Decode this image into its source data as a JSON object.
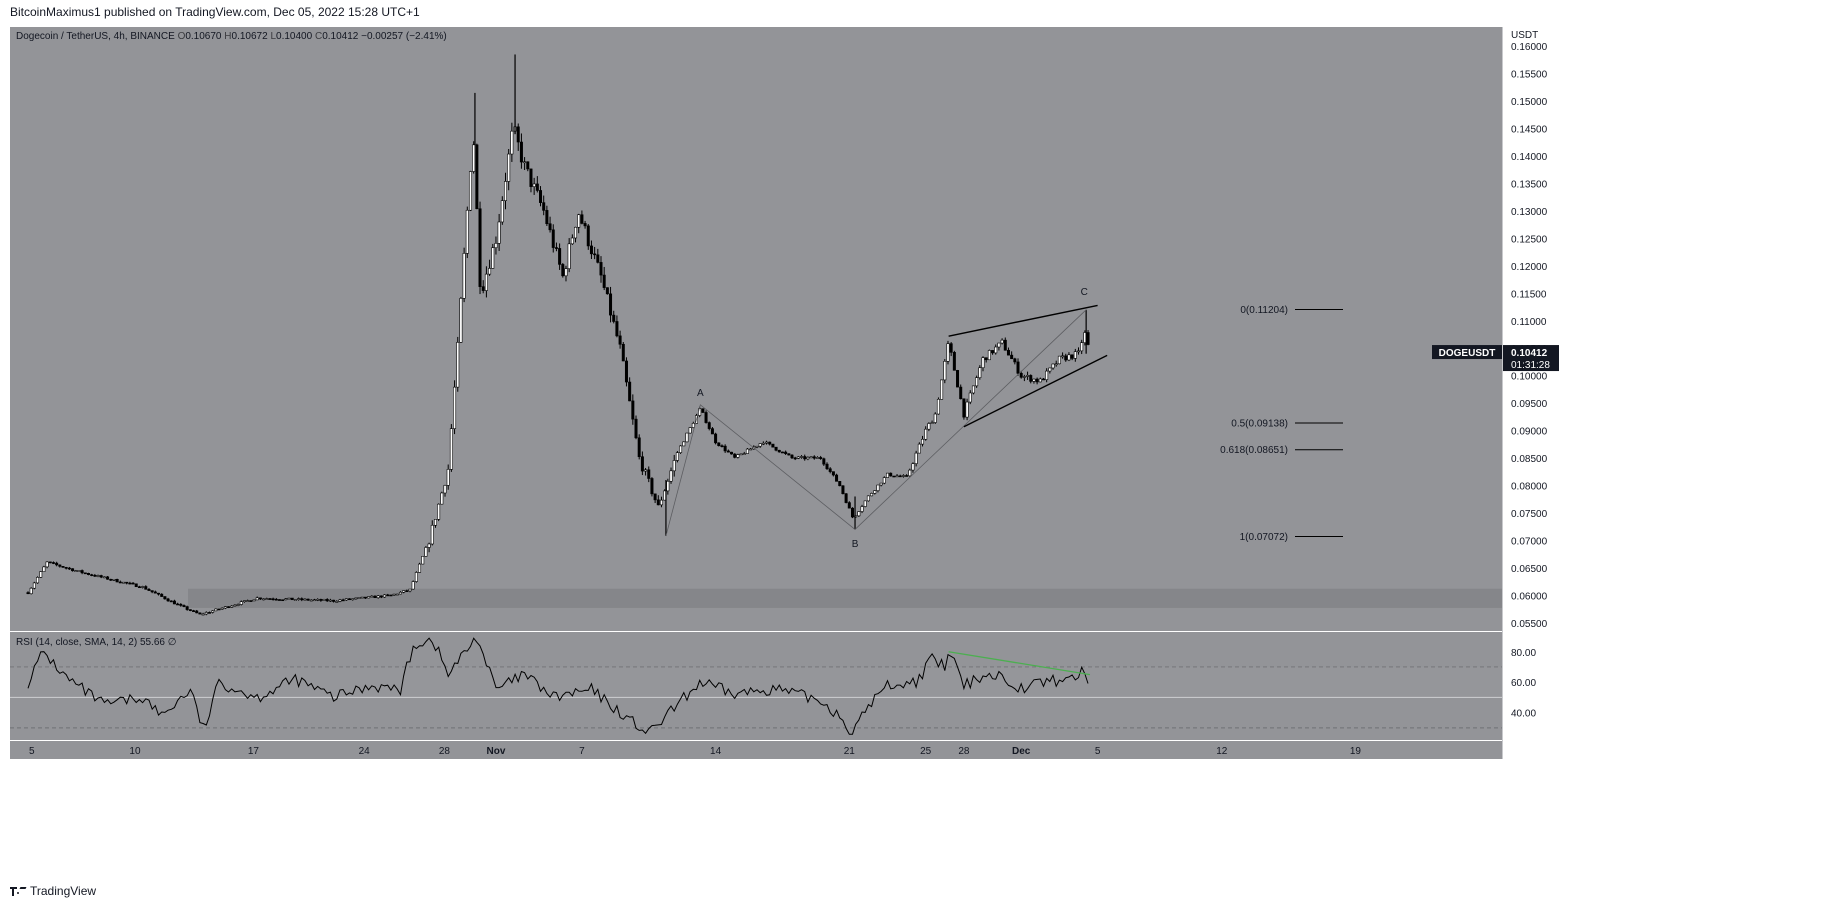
{
  "header": {
    "published": "BitcoinMaximus1 published on TradingView.com, Dec 05, 2022 15:28 UTC+1"
  },
  "footer": {
    "brand": "TradingView",
    "logo_icon": "tradingview-logo-icon"
  },
  "chart_data": [
    {
      "type": "candlestick",
      "symbol_title": "Dogecoin / TetherUS, 4h, BINANCE",
      "ohlc": {
        "O": "0.10670",
        "H": "0.10672",
        "L": "0.10400",
        "C": "0.10412",
        "change": "−0.00257 (−2.41%)"
      },
      "axis_unit": "USDT",
      "ylim": [
        0.0535,
        0.1635
      ],
      "y_ticks": [
        "0.16000",
        "0.15500",
        "0.15000",
        "0.14500",
        "0.14000",
        "0.13500",
        "0.13000",
        "0.12500",
        "0.12000",
        "0.11500",
        "0.11000",
        "0.10500",
        "0.10000",
        "0.09500",
        "0.09000",
        "0.08500",
        "0.08000",
        "0.07500",
        "0.07000",
        "0.06500",
        "0.06000",
        "0.05500"
      ],
      "x_ticks": [
        "5",
        "10",
        "17",
        "24",
        "28",
        "Nov",
        "7",
        "14",
        "21",
        "25",
        "28",
        "Dec",
        "5",
        "12",
        "19"
      ],
      "price_label": {
        "symbol": "DOGEUSDT",
        "price": "0.10412",
        "countdown": "01:31:28",
        "value": 0.10412
      },
      "support_zone": [
        0.0577,
        0.0612
      ],
      "waypoints": [
        {
          "day": 0,
          "price": 0.0605
        },
        {
          "day": 1,
          "price": 0.066
        },
        {
          "day": 3,
          "price": 0.064
        },
        {
          "day": 6,
          "price": 0.0615
        },
        {
          "day": 8,
          "price": 0.058
        },
        {
          "day": 9,
          "price": 0.0565
        },
        {
          "day": 12,
          "price": 0.0595
        },
        {
          "day": 16,
          "price": 0.059
        },
        {
          "day": 19,
          "price": 0.06
        },
        {
          "day": 20,
          "price": 0.061
        },
        {
          "day": 21,
          "price": 0.07
        },
        {
          "day": 22,
          "price": 0.083
        },
        {
          "day": 22.5,
          "price": 0.105
        },
        {
          "day": 23.3,
          "price": 0.145
        },
        {
          "day": 23.7,
          "price": 0.115
        },
        {
          "day": 24.5,
          "price": 0.125
        },
        {
          "day": 25.4,
          "price": 0.145
        },
        {
          "day": 26,
          "price": 0.138
        },
        {
          "day": 27,
          "price": 0.13
        },
        {
          "day": 28,
          "price": 0.118
        },
        {
          "day": 28.8,
          "price": 0.13
        },
        {
          "day": 30,
          "price": 0.118
        },
        {
          "day": 31,
          "price": 0.105
        },
        {
          "day": 32,
          "price": 0.085
        },
        {
          "day": 33,
          "price": 0.076
        },
        {
          "day": 34,
          "price": 0.086
        },
        {
          "day": 35.2,
          "price": 0.094
        },
        {
          "day": 36,
          "price": 0.088
        },
        {
          "day": 37,
          "price": 0.085
        },
        {
          "day": 38.5,
          "price": 0.088
        },
        {
          "day": 40,
          "price": 0.085
        },
        {
          "day": 41.5,
          "price": 0.085
        },
        {
          "day": 42.5,
          "price": 0.08
        },
        {
          "day": 43.2,
          "price": 0.074
        },
        {
          "day": 44,
          "price": 0.078
        },
        {
          "day": 45,
          "price": 0.082
        },
        {
          "day": 46,
          "price": 0.0815
        },
        {
          "day": 47,
          "price": 0.09
        },
        {
          "day": 47.5,
          "price": 0.093
        },
        {
          "day": 48.2,
          "price": 0.106
        },
        {
          "day": 49,
          "price": 0.093
        },
        {
          "day": 50,
          "price": 0.103
        },
        {
          "day": 51,
          "price": 0.106
        },
        {
          "day": 52,
          "price": 0.1
        },
        {
          "day": 53,
          "price": 0.099
        },
        {
          "day": 54,
          "price": 0.103
        },
        {
          "day": 55,
          "price": 0.104
        },
        {
          "day": 55.3,
          "price": 0.108
        },
        {
          "day": 55.6,
          "price": 0.10412
        }
      ],
      "candle_spikes": [
        {
          "day": 23.4,
          "high": 0.1515,
          "low": 0.142
        },
        {
          "day": 25.5,
          "high": 0.1585,
          "low": 0.144
        },
        {
          "day": 33.4,
          "high": 0.081,
          "low": 0.0708
        },
        {
          "day": 43.3,
          "high": 0.078,
          "low": 0.072
        },
        {
          "day": 55.4,
          "high": 0.112,
          "low": 0.104
        }
      ],
      "wave_labels": [
        {
          "text": "A",
          "day": 35.2,
          "price": 0.0963
        },
        {
          "text": "B",
          "day": 43.3,
          "price": 0.0688
        },
        {
          "text": "C",
          "day": 55.3,
          "price": 0.1147
        }
      ],
      "wave_path": [
        {
          "day": 33.4,
          "price": 0.0708
        },
        {
          "day": 35.2,
          "price": 0.0947
        },
        {
          "day": 43.3,
          "price": 0.072
        },
        {
          "day": 55.4,
          "price": 0.112
        }
      ],
      "wedge_lines": [
        [
          {
            "day": 48.2,
            "price": 0.1072
          },
          {
            "day": 56,
            "price": 0.1128
          }
        ],
        [
          {
            "day": 49,
            "price": 0.0907
          },
          {
            "day": 56.5,
            "price": 0.1037
          }
        ]
      ],
      "fib_levels": [
        {
          "label": "0(0.11204)",
          "value": 0.11204
        },
        {
          "label": "0.5(0.09138)",
          "value": 0.09138
        },
        {
          "label": "0.618(0.08651)",
          "value": 0.08651
        },
        {
          "label": "1(0.07072)",
          "value": 0.07072
        }
      ]
    },
    {
      "type": "line",
      "title": "RSI (14, close, SMA, 14, 2)",
      "value": "55.66",
      "ylim": [
        22,
        93
      ],
      "y_ticks": [
        "80.00",
        "60.00",
        "40.00"
      ],
      "bands": [
        70,
        50,
        30
      ],
      "divergence_line": [
        {
          "day": 48.2,
          "value": 80
        },
        {
          "day": 55.6,
          "value": 65
        }
      ],
      "waypoints": [
        {
          "day": 0,
          "value": 60
        },
        {
          "day": 0.8,
          "value": 80
        },
        {
          "day": 2,
          "value": 63
        },
        {
          "day": 4,
          "value": 45
        },
        {
          "day": 6,
          "value": 50
        },
        {
          "day": 7,
          "value": 38
        },
        {
          "day": 8.5,
          "value": 55
        },
        {
          "day": 9.2,
          "value": 28
        },
        {
          "day": 10,
          "value": 60
        },
        {
          "day": 12,
          "value": 50
        },
        {
          "day": 14,
          "value": 62
        },
        {
          "day": 16,
          "value": 50
        },
        {
          "day": 18,
          "value": 58
        },
        {
          "day": 19.5,
          "value": 55
        },
        {
          "day": 20.2,
          "value": 85
        },
        {
          "day": 21.2,
          "value": 88
        },
        {
          "day": 22,
          "value": 65
        },
        {
          "day": 23.5,
          "value": 90
        },
        {
          "day": 24.5,
          "value": 55
        },
        {
          "day": 26,
          "value": 65
        },
        {
          "day": 27.5,
          "value": 50
        },
        {
          "day": 29.5,
          "value": 55
        },
        {
          "day": 31,
          "value": 40
        },
        {
          "day": 32.5,
          "value": 26
        },
        {
          "day": 34,
          "value": 45
        },
        {
          "day": 35.2,
          "value": 60
        },
        {
          "day": 37,
          "value": 52
        },
        {
          "day": 39,
          "value": 56
        },
        {
          "day": 41.5,
          "value": 48
        },
        {
          "day": 42.5,
          "value": 38
        },
        {
          "day": 43.2,
          "value": 26
        },
        {
          "day": 44,
          "value": 45
        },
        {
          "day": 45,
          "value": 58
        },
        {
          "day": 46.5,
          "value": 60
        },
        {
          "day": 47.3,
          "value": 75
        },
        {
          "day": 48,
          "value": 70
        },
        {
          "day": 48.3,
          "value": 80
        },
        {
          "day": 49,
          "value": 57
        },
        {
          "day": 50,
          "value": 65
        },
        {
          "day": 51,
          "value": 64
        },
        {
          "day": 52,
          "value": 56
        },
        {
          "day": 53,
          "value": 60
        },
        {
          "day": 54.5,
          "value": 62
        },
        {
          "day": 55.3,
          "value": 67
        },
        {
          "day": 55.6,
          "value": 56
        }
      ]
    }
  ],
  "colors": {
    "background": "#939498",
    "candle": "#000000",
    "support_zone": "#808185",
    "separator": "#ffffff",
    "divergence": "#4caf50",
    "text": "#131722",
    "price_tag_bg": "#131722",
    "price_tag_fg": "#ffffff"
  }
}
